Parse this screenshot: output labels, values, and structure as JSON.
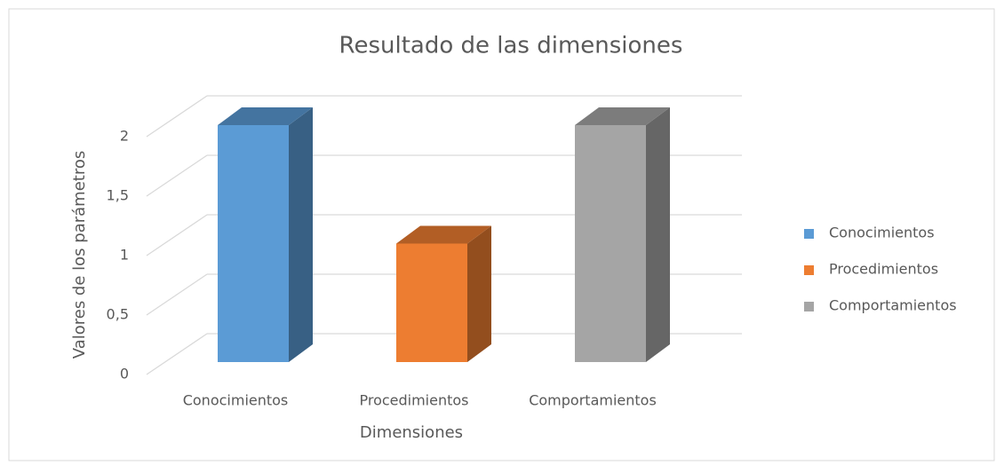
{
  "chart_data": {
    "type": "bar3d",
    "title": "Resultado de las dimensiones",
    "x_label": "Dimensiones",
    "y_label": "Valores de los parámetros",
    "categories": [
      "Conocimientos",
      "Procedimientos",
      "Comportamientos"
    ],
    "values": [
      2,
      1,
      2
    ],
    "colors": [
      "#5b9bd5",
      "#ed7d31",
      "#a5a5a5"
    ],
    "ylim": [
      0,
      2
    ],
    "yticks": [
      0,
      {
        "value": 0.5,
        "label": "0,5"
      },
      1,
      {
        "value": 1.5,
        "label": "1,5"
      },
      2
    ],
    "grid": true,
    "legend": "right"
  }
}
